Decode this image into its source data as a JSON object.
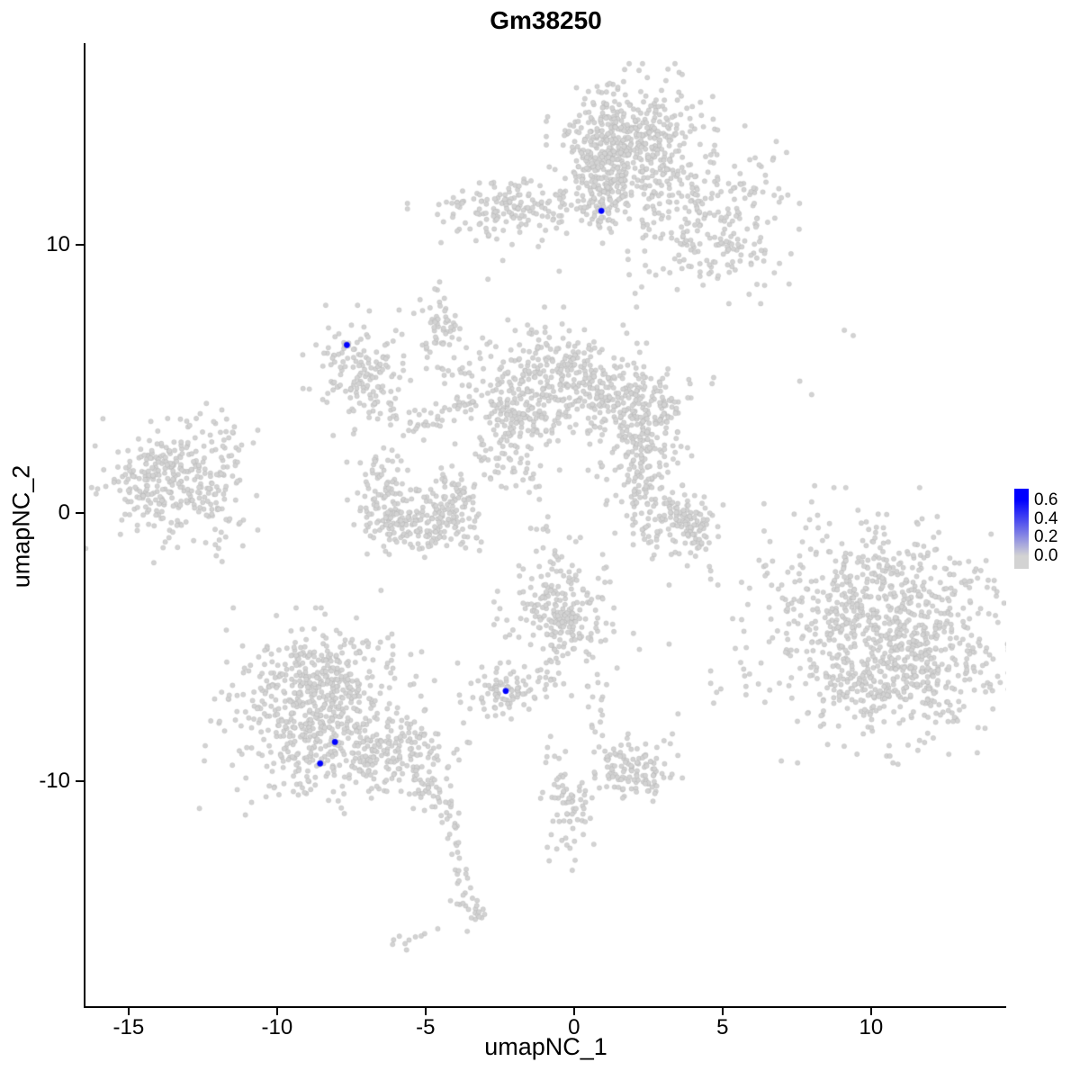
{
  "title": "Gm38250",
  "axes": {
    "xlabel": "umapNC_1",
    "ylabel": "umapNC_2",
    "x_tick_labels": [
      "-15",
      "-10",
      "-5",
      "0",
      "5",
      "10"
    ],
    "x_tick_values": [
      -15,
      -10,
      -5,
      0,
      5,
      10
    ],
    "y_tick_labels": [
      "10",
      "0",
      "-10"
    ],
    "y_tick_values": [
      10,
      0,
      -10
    ],
    "xlim": [
      -16.45,
      14.55
    ],
    "ylim": [
      -18.4,
      17.5
    ]
  },
  "legend": {
    "labels": [
      "0.6",
      "0.4",
      "0.2",
      "0.0"
    ],
    "values": [
      0.6,
      0.4,
      0.2,
      0.0
    ],
    "color_max": "#0000FF",
    "color_mid_high": "#4646F0",
    "color_mid_low": "#8D8DE2",
    "color_min": "#D3D3D3"
  },
  "chart_data": {
    "type": "scatter",
    "title": "Gm38250",
    "xlabel": "umapNC_1",
    "ylabel": "umapNC_2",
    "xlim": [
      -16.45,
      14.55
    ],
    "ylim": [
      -18.4,
      17.5
    ],
    "grid": false,
    "legend_position": "right",
    "point_color": "#D3D3D3",
    "highlight_color": "#0000FF",
    "colorbar_range": [
      0.0,
      0.6
    ],
    "clusters": [
      {
        "cx": 1.9,
        "cy": 13.9,
        "sx": 1.05,
        "sy": 1.05,
        "n": 420
      },
      {
        "cx": 0.9,
        "cy": 13.2,
        "sx": 0.6,
        "sy": 0.9,
        "n": 120
      },
      {
        "cx": 1.0,
        "cy": 11.7,
        "sx": 0.35,
        "sy": 0.7,
        "n": 70
      },
      {
        "cx": 4.3,
        "cy": 11.3,
        "sx": 1.5,
        "sy": 1.3,
        "n": 230
      },
      {
        "cx": 4.9,
        "cy": 9.6,
        "sx": 1.2,
        "sy": 0.7,
        "n": 60
      },
      {
        "cx": -2.1,
        "cy": 11.4,
        "sx": 1.3,
        "sy": 0.55,
        "n": 170
      },
      {
        "cx": -4.45,
        "cy": 6.9,
        "sx": 0.35,
        "sy": 0.75,
        "n": 55
      },
      {
        "cx": -7.1,
        "cy": 5.3,
        "sx": 0.8,
        "sy": 0.9,
        "n": 150
      },
      {
        "cx": -0.8,
        "cy": 5.1,
        "sx": 1.2,
        "sy": 0.95,
        "n": 300
      },
      {
        "cx": 2.0,
        "cy": 3.8,
        "sx": 1.0,
        "sy": 0.95,
        "n": 260
      },
      {
        "cx": -1.9,
        "cy": 3.5,
        "sx": 0.65,
        "sy": 0.65,
        "n": 110
      },
      {
        "cx": -13.7,
        "cy": 1.1,
        "sx": 1.15,
        "sy": 1.1,
        "n": 300
      },
      {
        "cx": -11.9,
        "cy": 1.0,
        "sx": 0.55,
        "sy": 1.1,
        "n": 55
      },
      {
        "cx": -6.3,
        "cy": 0.6,
        "sx": 0.5,
        "sy": 0.9,
        "n": 100
      },
      {
        "cx": -5.2,
        "cy": -0.5,
        "sx": 0.85,
        "sy": 0.5,
        "n": 140
      },
      {
        "cx": -4.1,
        "cy": 0.4,
        "sx": 0.45,
        "sy": 0.8,
        "n": 90
      },
      {
        "cx": 2.3,
        "cy": 1.8,
        "sx": 0.5,
        "sy": 0.9,
        "n": 90
      },
      {
        "cx": 3.1,
        "cy": -0.1,
        "sx": 0.75,
        "sy": 0.6,
        "n": 110
      },
      {
        "cx": 4.2,
        "cy": -0.6,
        "sx": 0.35,
        "sy": 0.65,
        "n": 55
      },
      {
        "cx": 2.2,
        "cy": 3.1,
        "sx": 0.3,
        "sy": 0.4,
        "n": 12
      },
      {
        "cx": 10.0,
        "cy": -4.2,
        "sx": 2.0,
        "sy": 1.9,
        "n": 650
      },
      {
        "cx": 11.3,
        "cy": -5.6,
        "sx": 1.5,
        "sy": 1.4,
        "n": 350
      },
      {
        "cx": 9.8,
        "cy": -2.4,
        "sx": 1.3,
        "sy": 0.5,
        "n": 40
      },
      {
        "cx": -0.4,
        "cy": -3.9,
        "sx": 0.85,
        "sy": 1.1,
        "n": 230
      },
      {
        "cx": -2.3,
        "cy": -6.7,
        "sx": 0.6,
        "sy": 0.5,
        "n": 85
      },
      {
        "cx": -8.6,
        "cy": -7.6,
        "sx": 1.5,
        "sy": 1.5,
        "n": 550
      },
      {
        "cx": -8.8,
        "cy": -5.8,
        "sx": 1.0,
        "sy": 0.6,
        "n": 120
      },
      {
        "cx": -5.9,
        "cy": -9.1,
        "sx": 1.0,
        "sy": 0.75,
        "n": 170
      },
      {
        "cx": -3.5,
        "cy": -14.8,
        "sx": 0.3,
        "sy": 0.3,
        "n": 22
      },
      {
        "cx": -0.2,
        "cy": -11.2,
        "sx": 0.4,
        "sy": 0.85,
        "n": 65
      },
      {
        "cx": 2.0,
        "cy": -9.6,
        "sx": 0.7,
        "sy": 0.5,
        "n": 120
      }
    ],
    "trails": [
      {
        "x1": -4.2,
        "y1": 5.8,
        "x2": -3.3,
        "y2": 3.6,
        "n": 20,
        "jitter": 0.25
      },
      {
        "x1": -6.3,
        "y1": 4.0,
        "x2": -4.8,
        "y2": 3.3,
        "n": 28,
        "jitter": 0.3
      },
      {
        "x1": -4.8,
        "y1": 3.3,
        "x2": -3.5,
        "y2": 4.2,
        "n": 22,
        "jitter": 0.3
      },
      {
        "x1": -2.8,
        "y1": 2.4,
        "x2": -2.2,
        "y2": 1.2,
        "n": 22,
        "jitter": 0.3
      },
      {
        "x1": -1.7,
        "y1": 2.6,
        "x2": -1.4,
        "y2": 0.6,
        "n": 18,
        "jitter": 0.25
      },
      {
        "x1": -1.3,
        "y1": 0.4,
        "x2": -0.6,
        "y2": -2.5,
        "n": 16,
        "jitter": 0.3
      },
      {
        "x1": -0.8,
        "y1": -5.3,
        "x2": -1.0,
        "y2": -6.3,
        "n": 10,
        "jitter": 0.2
      },
      {
        "x1": -5.0,
        "y1": -10.0,
        "x2": -4.2,
        "y2": -11.4,
        "n": 30,
        "jitter": 0.25
      },
      {
        "x1": -4.1,
        "y1": -11.6,
        "x2": -3.6,
        "y2": -14.4,
        "n": 20,
        "jitter": 0.15
      },
      {
        "x1": -3.9,
        "y1": -15.2,
        "x2": -6.1,
        "y2": -16.1,
        "n": 10,
        "jitter": 0.15
      },
      {
        "x1": 0.6,
        "y1": -6.1,
        "x2": 1.0,
        "y2": -8.6,
        "n": 14,
        "jitter": 0.2
      },
      {
        "x1": -1.1,
        "y1": -8.3,
        "x2": -0.4,
        "y2": -10.3,
        "n": 10,
        "jitter": 0.2
      }
    ],
    "singles": [
      [
        7.6,
        4.9
      ],
      [
        8.0,
        4.4
      ],
      [
        9.1,
        6.8
      ],
      [
        9.4,
        6.6
      ],
      [
        8.1,
        1.0
      ],
      [
        8.0,
        0.4
      ],
      [
        8.2,
        -0.1
      ],
      [
        4.8,
        -6.7
      ],
      [
        4.7,
        -7.1
      ],
      [
        3.5,
        -7.5
      ],
      [
        3.2,
        -4.9
      ],
      [
        2.0,
        -4.5
      ],
      [
        2.2,
        -5.1
      ],
      [
        3.2,
        -2.7
      ],
      [
        -10.8,
        2.6
      ],
      [
        -11.5,
        3.0
      ],
      [
        -2.4,
        9.4
      ],
      [
        -2.9,
        8.7
      ],
      [
        -0.5,
        9.0
      ],
      [
        -6.5,
        -2.9
      ]
    ],
    "highlight_points": [
      {
        "x": 0.92,
        "y": 11.25,
        "value": 0.6
      },
      {
        "x": -7.65,
        "y": 6.25,
        "value": 0.6
      },
      {
        "x": -8.05,
        "y": -8.55,
        "value": 0.6
      },
      {
        "x": -8.55,
        "y": -9.35,
        "value": 0.6
      },
      {
        "x": -2.3,
        "y": -6.65,
        "value": 0.6
      }
    ]
  }
}
